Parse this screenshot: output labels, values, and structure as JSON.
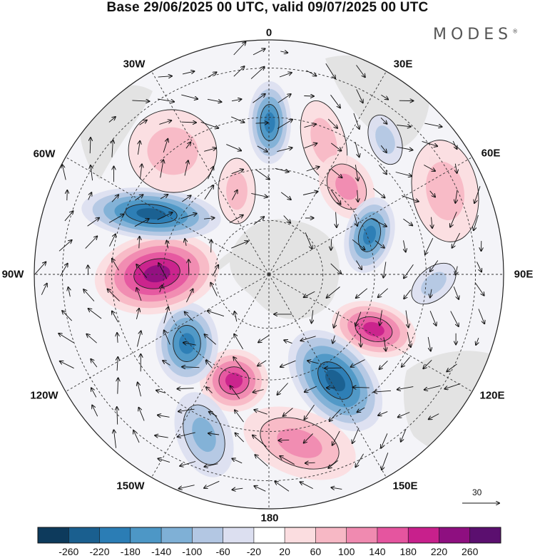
{
  "title": "Base 29/06/2025 00 UTC, valid 09/07/2025 00 UTC",
  "brand": "MODES",
  "brand_mark": "®",
  "longitude_labels": [
    "0",
    "30E",
    "60E",
    "90E",
    "120E",
    "150E",
    "180",
    "150W",
    "120W",
    "90W",
    "60W",
    "30W"
  ],
  "reference_vector": {
    "label": "30"
  },
  "colorbar": {
    "tick_labels": [
      "-260",
      "-220",
      "-180",
      "-140",
      "-100",
      "-60",
      "-20",
      "20",
      "60",
      "100",
      "140",
      "180",
      "220",
      "260"
    ],
    "colors": [
      "#0d3a5c",
      "#1a5f8f",
      "#2b7db5",
      "#4d97c6",
      "#7fb0d6",
      "#b3c7e3",
      "#dcdff0",
      "#ffffff",
      "#fbdde0",
      "#f7b8c5",
      "#f08ab0",
      "#e5559f",
      "#c8208c",
      "#8e0f80",
      "#5b0f6f"
    ]
  },
  "map": {
    "projection": "south-polar-stereographic",
    "land_color": "#e3e3e3",
    "anomalies": [
      {
        "sign": "neg",
        "level": 5,
        "label": "center-north-0"
      },
      {
        "sign": "pos",
        "level": 2,
        "label": "north-20E"
      },
      {
        "sign": "neg",
        "level": 2,
        "label": "north-40E"
      },
      {
        "sign": "pos",
        "level": 3,
        "label": "ring-40E"
      },
      {
        "sign": "pos",
        "level": 2,
        "label": "outer-70E"
      },
      {
        "sign": "neg",
        "level": 5,
        "label": "ring-70E"
      },
      {
        "sign": "neg",
        "level": 2,
        "label": "outer-105E"
      },
      {
        "sign": "pos",
        "level": 5,
        "label": "ring-110E"
      },
      {
        "sign": "neg",
        "level": 6,
        "label": "ring-155E"
      },
      {
        "sign": "pos",
        "level": 5,
        "label": "ring-165W"
      },
      {
        "sign": "pos",
        "level": 3,
        "label": "outer-170E"
      },
      {
        "sign": "neg",
        "level": 5,
        "label": "ring-125W"
      },
      {
        "sign": "neg",
        "level": 3,
        "label": "outer-150W"
      },
      {
        "sign": "pos",
        "level": 6,
        "label": "outer-100W"
      },
      {
        "sign": "neg",
        "level": 6,
        "label": "outer-60W"
      },
      {
        "sign": "pos",
        "level": 2,
        "label": "outer-40W"
      },
      {
        "sign": "pos",
        "level": 2,
        "label": "ring-25W"
      }
    ]
  }
}
